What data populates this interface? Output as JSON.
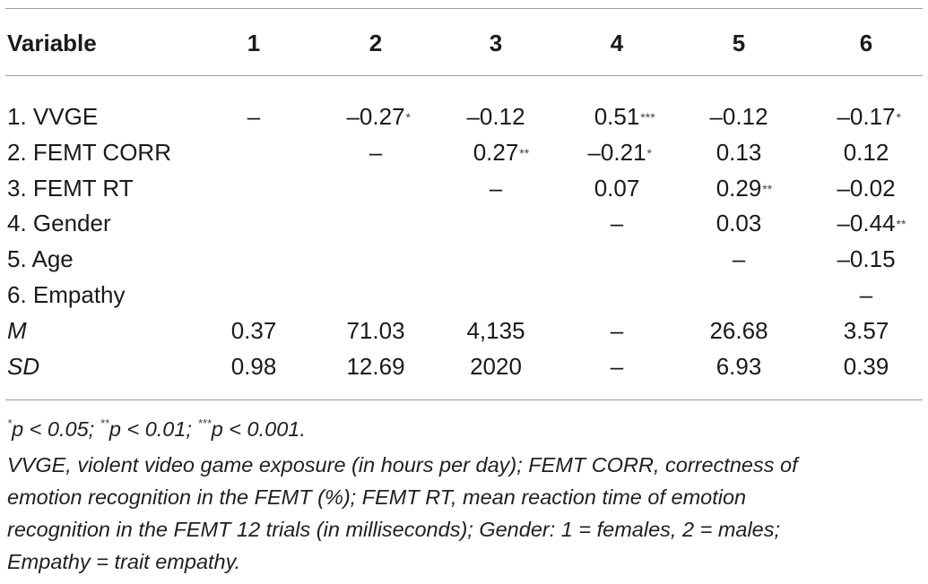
{
  "header": {
    "variable": "Variable",
    "c1": "1",
    "c2": "2",
    "c3": "3",
    "c4": "4",
    "c5": "5",
    "c6": "6"
  },
  "rows": [
    {
      "label": "1. VVGE",
      "cells": [
        {
          "v": "–",
          "s": ""
        },
        {
          "v": "–0.27",
          "s": "*"
        },
        {
          "v": "–0.12",
          "s": ""
        },
        {
          "v": "0.51",
          "s": "***"
        },
        {
          "v": "–0.12",
          "s": ""
        },
        {
          "v": "–0.17",
          "s": "*"
        }
      ]
    },
    {
      "label": "2. FEMT CORR",
      "cells": [
        {
          "v": "",
          "s": ""
        },
        {
          "v": "–",
          "s": ""
        },
        {
          "v": "0.27",
          "s": "**"
        },
        {
          "v": "–0.21",
          "s": "*"
        },
        {
          "v": "0.13",
          "s": ""
        },
        {
          "v": "0.12",
          "s": ""
        }
      ]
    },
    {
      "label": "3. FEMT RT",
      "cells": [
        {
          "v": "",
          "s": ""
        },
        {
          "v": "",
          "s": ""
        },
        {
          "v": "–",
          "s": ""
        },
        {
          "v": "0.07",
          "s": ""
        },
        {
          "v": "0.29",
          "s": "**"
        },
        {
          "v": "–0.02",
          "s": ""
        }
      ]
    },
    {
      "label": "4. Gender",
      "cells": [
        {
          "v": "",
          "s": ""
        },
        {
          "v": "",
          "s": ""
        },
        {
          "v": "",
          "s": ""
        },
        {
          "v": "–",
          "s": ""
        },
        {
          "v": "0.03",
          "s": ""
        },
        {
          "v": "–0.44",
          "s": "**"
        }
      ]
    },
    {
      "label": "5. Age",
      "cells": [
        {
          "v": "",
          "s": ""
        },
        {
          "v": "",
          "s": ""
        },
        {
          "v": "",
          "s": ""
        },
        {
          "v": "",
          "s": ""
        },
        {
          "v": "–",
          "s": ""
        },
        {
          "v": "–0.15",
          "s": ""
        }
      ]
    },
    {
      "label": "6. Empathy",
      "cells": [
        {
          "v": "",
          "s": ""
        },
        {
          "v": "",
          "s": ""
        },
        {
          "v": "",
          "s": ""
        },
        {
          "v": "",
          "s": ""
        },
        {
          "v": "",
          "s": ""
        },
        {
          "v": "–",
          "s": ""
        }
      ]
    },
    {
      "label": "M",
      "italic": true,
      "cells": [
        {
          "v": "0.37",
          "s": ""
        },
        {
          "v": "71.03",
          "s": ""
        },
        {
          "v": "4,135",
          "s": ""
        },
        {
          "v": "–",
          "s": ""
        },
        {
          "v": "26.68",
          "s": ""
        },
        {
          "v": "3.57",
          "s": ""
        }
      ]
    },
    {
      "label": "SD",
      "italic": true,
      "cells": [
        {
          "v": "0.98",
          "s": ""
        },
        {
          "v": "12.69",
          "s": ""
        },
        {
          "v": "2020",
          "s": ""
        },
        {
          "v": "–",
          "s": ""
        },
        {
          "v": "6.93",
          "s": ""
        },
        {
          "v": "0.39",
          "s": ""
        }
      ]
    }
  ],
  "notes": {
    "sig": [
      {
        "s": "*",
        "t": "p < 0.05; "
      },
      {
        "s": "**",
        "t": "p < 0.01; "
      },
      {
        "s": "***",
        "t": "p < 0.001."
      }
    ],
    "lines": [
      "VVGE, violent video game exposure (in hours per day); FEMT CORR, correctness of",
      "emotion recognition in the FEMT (%); FEMT RT, mean reaction time of emotion",
      "recognition in the FEMT 12 trials (in milliseconds); Gender: 1 = females, 2 = males;",
      "Empathy = trait empathy."
    ]
  }
}
